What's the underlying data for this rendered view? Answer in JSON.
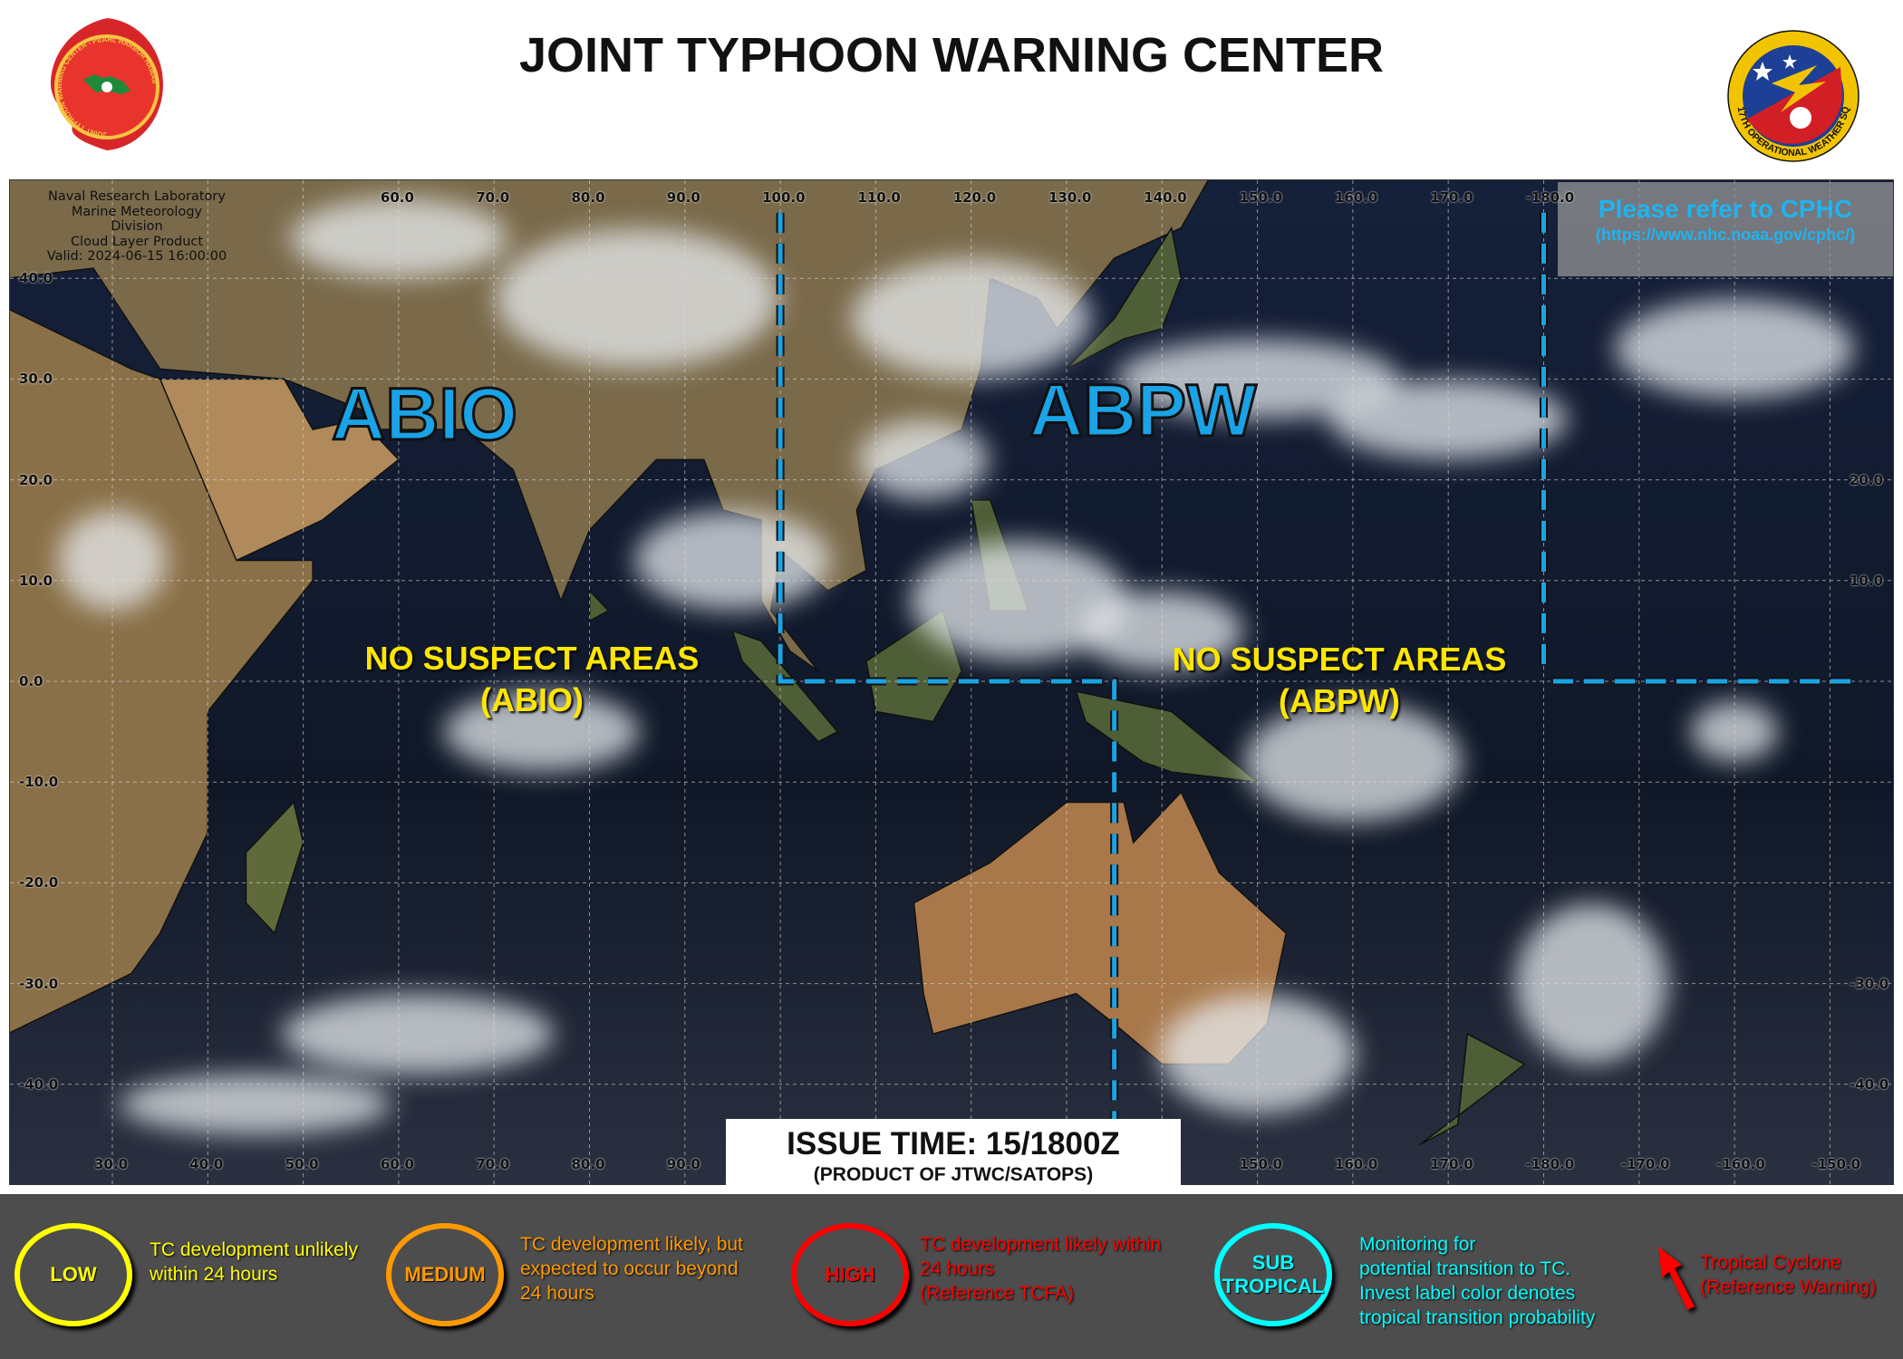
{
  "header": {
    "title": "JOINT TYPHOON WARNING CENTER",
    "left_logo_text": "JOINT TYPHOON WARNING CENTER - PEARL HARBOR HAWAII",
    "right_logo_text": "17TH OPERATIONAL WEATHER SQ"
  },
  "map": {
    "meta_lines": [
      "Naval Research Laboratory",
      "Marine Meteorology Division",
      "Cloud Layer Product",
      "Valid: 2024-06-15 16:00:00"
    ],
    "top_lon_labels": [
      {
        "lon": 60,
        "text": "60.0"
      },
      {
        "lon": 70,
        "text": "70.0"
      },
      {
        "lon": 80,
        "text": "80.0"
      },
      {
        "lon": 90,
        "text": "90.0"
      },
      {
        "lon": 100,
        "text": "100.0"
      },
      {
        "lon": 110,
        "text": "110.0"
      },
      {
        "lon": 120,
        "text": "120.0"
      },
      {
        "lon": 130,
        "text": "130.0"
      },
      {
        "lon": 140,
        "text": "140.0"
      },
      {
        "lon": 150,
        "text": "150.0"
      },
      {
        "lon": 160,
        "text": "160.0"
      },
      {
        "lon": 170,
        "text": "170.0"
      },
      {
        "lon": 180,
        "text": "-180.0"
      }
    ],
    "bottom_lon_labels": [
      {
        "lon": 30,
        "text": "30.0"
      },
      {
        "lon": 40,
        "text": "40.0"
      },
      {
        "lon": 50,
        "text": "50.0"
      },
      {
        "lon": 60,
        "text": "60.0"
      },
      {
        "lon": 70,
        "text": "70.0"
      },
      {
        "lon": 80,
        "text": "80.0"
      },
      {
        "lon": 90,
        "text": "90.0"
      },
      {
        "lon": 150,
        "text": "150.0"
      },
      {
        "lon": 160,
        "text": "160.0"
      },
      {
        "lon": 170,
        "text": "170.0"
      },
      {
        "lon": 180,
        "text": "-180.0"
      },
      {
        "lon": 190,
        "text": "-170.0"
      },
      {
        "lon": 200,
        "text": "-160.0"
      },
      {
        "lon": 210,
        "text": "-150.0"
      }
    ],
    "left_lat_labels": [
      {
        "lat": 40,
        "text": "40.0"
      },
      {
        "lat": 30,
        "text": "30.0"
      },
      {
        "lat": 20,
        "text": "20.0"
      },
      {
        "lat": 10,
        "text": "10.0"
      },
      {
        "lat": 0,
        "text": "0.0"
      },
      {
        "lat": -10,
        "text": "-10.0"
      },
      {
        "lat": -20,
        "text": "-20.0"
      },
      {
        "lat": -30,
        "text": "-30.0"
      },
      {
        "lat": -40,
        "text": "-40.0"
      }
    ],
    "right_lat_labels": [
      {
        "lat": 20,
        "text": "20.0"
      },
      {
        "lat": 10,
        "text": "10.0"
      },
      {
        "lat": -30,
        "text": "-30.0"
      },
      {
        "lat": -40,
        "text": "-40.0"
      }
    ],
    "region_abio": "ABIO",
    "region_abpw": "ABPW",
    "abio_status": [
      "NO SUSPECT AREAS",
      "(ABIO)"
    ],
    "abpw_status": [
      "NO SUSPECT AREAS",
      "(ABPW)"
    ],
    "cphc_note": "Please refer to CPHC",
    "cphc_url": "(https://www.nhc.noaa.gov/cphc/)",
    "boundary_color": "#1aa3e6"
  },
  "issue": {
    "time": "ISSUE TIME: 15/1800Z",
    "product": "(PRODUCT OF JTWC/SATOPS)"
  },
  "legend": [
    {
      "label": "LOW",
      "color": "#ffff00",
      "text": [
        "TC development  unlikely",
        "within 24 hours"
      ]
    },
    {
      "label": "MEDIUM",
      "color": "#ff9900",
      "text": [
        "TC development  likely,  but",
        "expected to occur beyond",
        "24 hours"
      ]
    },
    {
      "label": "HIGH",
      "color": "#ff0000",
      "text": [
        "TC development  likely within",
        "24 hours",
        "(Reference TCFA)"
      ]
    },
    {
      "label": "SUB TROPICAL",
      "color": "#00ffff",
      "text": [
        "Monitoring  for",
        "potential  transition to TC.",
        "Invest label color denotes",
        "tropical transition probability"
      ]
    },
    {
      "label": "",
      "color": "#ff0000",
      "text": [
        "Tropical Cyclone",
        "(Reference Warning)"
      ]
    }
  ]
}
